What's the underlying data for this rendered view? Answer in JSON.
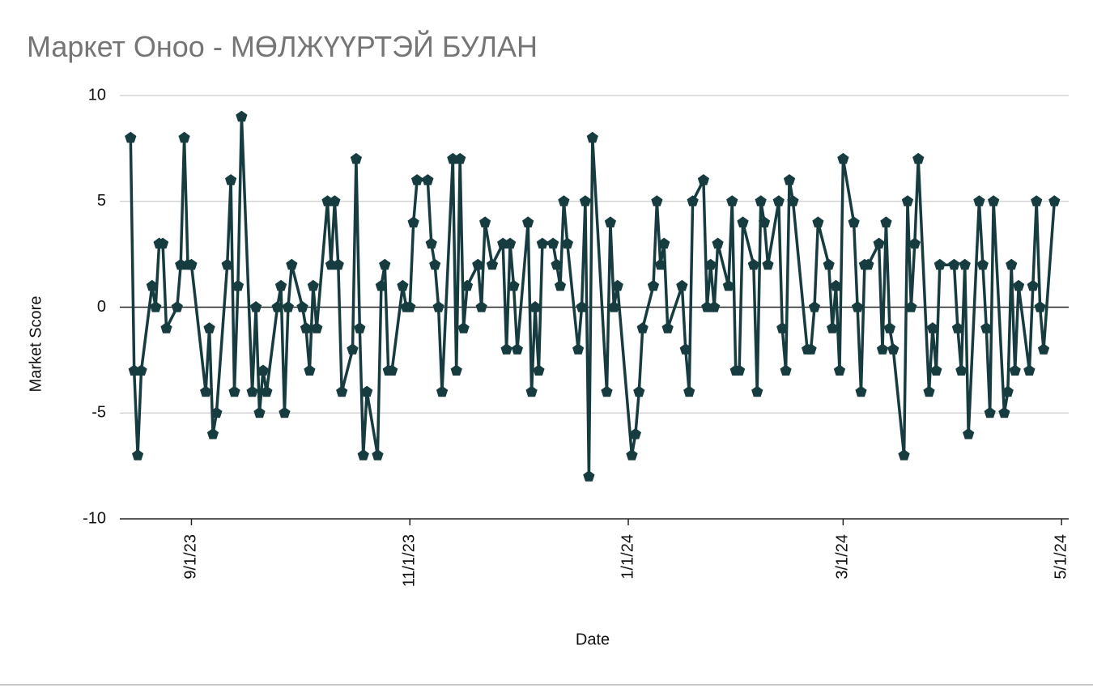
{
  "chart_data": {
    "type": "line",
    "title": "Маркет Оноо - МӨЛЖҮҮРТЭЙ БУЛАН",
    "x_label": "Date",
    "y_label": "Market Score",
    "color": "#173c40",
    "x": [
      "2023-08-15",
      "2023-08-16",
      "2023-08-17",
      "2023-08-18",
      "2023-08-21",
      "2023-08-22",
      "2023-08-23",
      "2023-08-24",
      "2023-08-25",
      "2023-08-28",
      "2023-08-29",
      "2023-08-30",
      "2023-08-31",
      "2023-09-01",
      "2023-09-05",
      "2023-09-06",
      "2023-09-07",
      "2023-09-08",
      "2023-09-11",
      "2023-09-12",
      "2023-09-13",
      "2023-09-14",
      "2023-09-15",
      "2023-09-18",
      "2023-09-19",
      "2023-09-20",
      "2023-09-21",
      "2023-09-22",
      "2023-09-25",
      "2023-09-26",
      "2023-09-27",
      "2023-09-28",
      "2023-09-29",
      "2023-10-02",
      "2023-10-03",
      "2023-10-04",
      "2023-10-05",
      "2023-10-06",
      "2023-10-09",
      "2023-10-10",
      "2023-10-11",
      "2023-10-12",
      "2023-10-13",
      "2023-10-16",
      "2023-10-17",
      "2023-10-18",
      "2023-10-19",
      "2023-10-20",
      "2023-10-23",
      "2023-10-24",
      "2023-10-25",
      "2023-10-26",
      "2023-10-27",
      "2023-10-30",
      "2023-10-31",
      "2023-11-01",
      "2023-11-02",
      "2023-11-03",
      "2023-11-06",
      "2023-11-07",
      "2023-11-08",
      "2023-11-09",
      "2023-11-10",
      "2023-11-13",
      "2023-11-14",
      "2023-11-15",
      "2023-11-16",
      "2023-11-17",
      "2023-11-20",
      "2023-11-21",
      "2023-11-22",
      "2023-11-24",
      "2023-11-27",
      "2023-11-28",
      "2023-11-29",
      "2023-11-30",
      "2023-12-01",
      "2023-12-04",
      "2023-12-05",
      "2023-12-06",
      "2023-12-07",
      "2023-12-08",
      "2023-12-11",
      "2023-12-12",
      "2023-12-13",
      "2023-12-14",
      "2023-12-15",
      "2023-12-18",
      "2023-12-19",
      "2023-12-20",
      "2023-12-21",
      "2023-12-22",
      "2023-12-26",
      "2023-12-27",
      "2023-12-28",
      "2023-12-29",
      "2024-01-02",
      "2024-01-03",
      "2024-01-04",
      "2024-01-05",
      "2024-01-08",
      "2024-01-09",
      "2024-01-10",
      "2024-01-11",
      "2024-01-12",
      "2024-01-16",
      "2024-01-17",
      "2024-01-18",
      "2024-01-19",
      "2024-01-22",
      "2024-01-23",
      "2024-01-24",
      "2024-01-25",
      "2024-01-26",
      "2024-01-29",
      "2024-01-30",
      "2024-01-31",
      "2024-02-01",
      "2024-02-02",
      "2024-02-05",
      "2024-02-06",
      "2024-02-07",
      "2024-02-08",
      "2024-02-09",
      "2024-02-12",
      "2024-02-13",
      "2024-02-14",
      "2024-02-15",
      "2024-02-16",
      "2024-02-20",
      "2024-02-21",
      "2024-02-22",
      "2024-02-23",
      "2024-02-26",
      "2024-02-27",
      "2024-02-28",
      "2024-02-29",
      "2024-03-01",
      "2024-03-04",
      "2024-03-05",
      "2024-03-06",
      "2024-03-07",
      "2024-03-08",
      "2024-03-11",
      "2024-03-12",
      "2024-03-13",
      "2024-03-14",
      "2024-03-15",
      "2024-03-18",
      "2024-03-19",
      "2024-03-20",
      "2024-03-21",
      "2024-03-22",
      "2024-03-25",
      "2024-03-26",
      "2024-03-27",
      "2024-03-28",
      "2024-04-01",
      "2024-04-02",
      "2024-04-03",
      "2024-04-04",
      "2024-04-05",
      "2024-04-08",
      "2024-04-09",
      "2024-04-10",
      "2024-04-11",
      "2024-04-12",
      "2024-04-15",
      "2024-04-16",
      "2024-04-17",
      "2024-04-18",
      "2024-04-19",
      "2024-04-22",
      "2024-04-23",
      "2024-04-24",
      "2024-04-25",
      "2024-04-26",
      "2024-04-29"
    ],
    "values": [
      8,
      -3,
      -7,
      -3,
      1,
      0,
      3,
      3,
      -1,
      0,
      2,
      8,
      2,
      2,
      -4,
      -1,
      -6,
      -5,
      2,
      6,
      -4,
      1,
      9,
      -4,
      0,
      -5,
      -3,
      -4,
      0,
      1,
      -5,
      0,
      2,
      0,
      -1,
      -3,
      1,
      -1,
      5,
      2,
      5,
      2,
      -4,
      -2,
      7,
      -1,
      -7,
      -4,
      -7,
      1,
      2,
      -3,
      -3,
      1,
      0,
      0,
      4,
      6,
      6,
      3,
      2,
      0,
      -4,
      7,
      -3,
      7,
      -1,
      1,
      2,
      0,
      4,
      2,
      3,
      -2,
      3,
      1,
      -2,
      4,
      -4,
      0,
      -3,
      3,
      3,
      2,
      1,
      5,
      3,
      -2,
      0,
      5,
      -8,
      8,
      -4,
      4,
      0,
      1,
      -7,
      -6,
      -4,
      -1,
      1,
      5,
      2,
      3,
      -1,
      1,
      -2,
      -4,
      5,
      6,
      0,
      2,
      0,
      3,
      1,
      5,
      -3,
      -3,
      4,
      2,
      -4,
      5,
      4,
      2,
      5,
      -1,
      -3,
      6,
      5,
      -2,
      -2,
      0,
      4,
      2,
      -1,
      1,
      -3,
      7,
      4,
      0,
      -4,
      2,
      2,
      3,
      -2,
      4,
      -1,
      -2,
      -7,
      5,
      0,
      3,
      7,
      -4,
      -1,
      -3,
      2,
      2,
      -1,
      -3,
      2,
      -6,
      5,
      2,
      -1,
      -5,
      5,
      -5,
      -4,
      2,
      -3,
      1,
      -3,
      1,
      5,
      0,
      -2,
      5
    ],
    "xlim": [
      "2023-08-12",
      "2024-05-03"
    ],
    "xticks": [
      {
        "value": "2023-09-01",
        "label": "9/1/23"
      },
      {
        "value": "2023-11-01",
        "label": "11/1/23"
      },
      {
        "value": "2024-01-01",
        "label": "1/1/24"
      },
      {
        "value": "2024-03-01",
        "label": "3/1/24"
      },
      {
        "value": "2024-05-01",
        "label": "5/1/24"
      }
    ],
    "ylim": [
      -10,
      10
    ],
    "yticks": [
      -10,
      -5,
      0,
      5,
      10
    ],
    "grid": true
  }
}
